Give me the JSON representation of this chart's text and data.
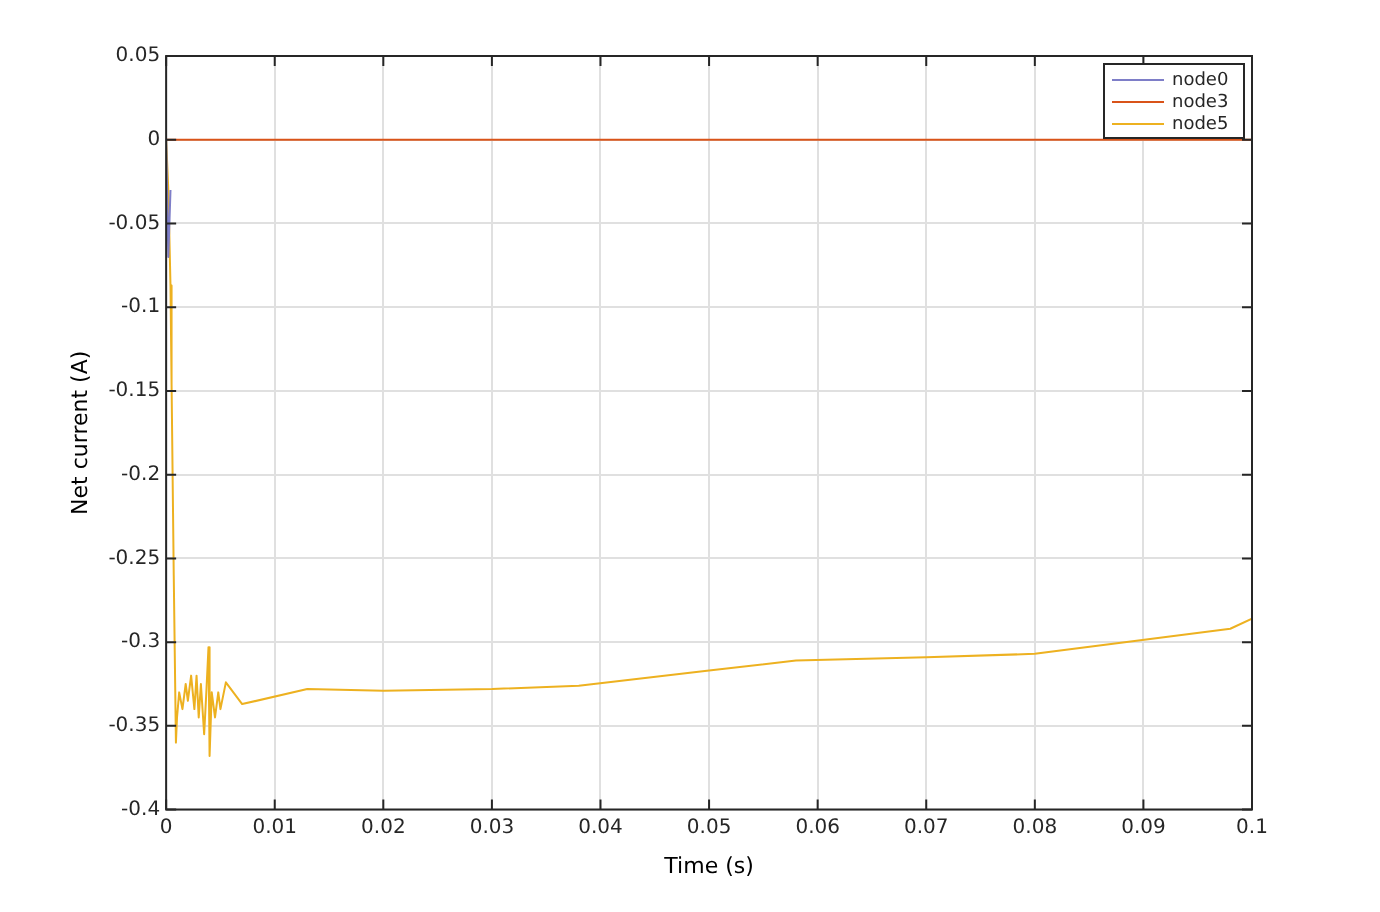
{
  "chart_data": {
    "type": "line",
    "xlabel": "Time (s)",
    "ylabel": "Net current (A)",
    "xlim": [
      0,
      0.1
    ],
    "xticks": [
      0,
      0.01,
      0.02,
      0.03,
      0.04,
      0.05,
      0.06,
      0.07,
      0.08,
      0.09,
      0.1
    ],
    "ylim": [
      -0.4,
      0.05
    ],
    "yticks": [
      -0.4,
      -0.35,
      -0.3,
      -0.25,
      -0.2,
      -0.15,
      -0.1,
      -0.05,
      0,
      0.05
    ],
    "grid": true,
    "legend": "top right",
    "marker": "none",
    "line_style": "solid",
    "series": [
      {
        "name": "node0",
        "color": "#7e7ec8",
        "x": [
          0,
          0.0002,
          0.0004
        ],
        "values": [
          0,
          -0.07,
          -0.03
        ]
      },
      {
        "name": "node3",
        "color": "#d95319",
        "x": [
          0,
          0.1
        ],
        "values": [
          0,
          0
        ]
      },
      {
        "name": "node5",
        "color": "#edb120",
        "x": [
          0,
          0.0002,
          0.0004,
          0.0005,
          0.0007,
          0.0009,
          0.001,
          0.0012,
          0.0015,
          0.0018,
          0.002,
          0.0023,
          0.0026,
          0.0028,
          0.003,
          0.0032,
          0.0035,
          0.0037,
          0.0039,
          0.004,
          0.0042,
          0.0045,
          0.0048,
          0.005,
          0.0055,
          0.007,
          0.013,
          0.02,
          0.03,
          0.038,
          0.05,
          0.058,
          0.07,
          0.08,
          0.098,
          0.1
        ],
        "values": [
          0,
          -0.03,
          -0.087,
          -0.146,
          -0.26,
          -0.36,
          -0.345,
          -0.33,
          -0.34,
          -0.325,
          -0.335,
          -0.32,
          -0.34,
          -0.32,
          -0.345,
          -0.325,
          -0.355,
          -0.33,
          -0.303,
          -0.368,
          -0.33,
          -0.345,
          -0.33,
          -0.34,
          -0.324,
          -0.337,
          -0.328,
          -0.329,
          -0.328,
          -0.326,
          -0.317,
          -0.311,
          -0.309,
          -0.307,
          -0.292,
          -0.286
        ]
      }
    ]
  }
}
